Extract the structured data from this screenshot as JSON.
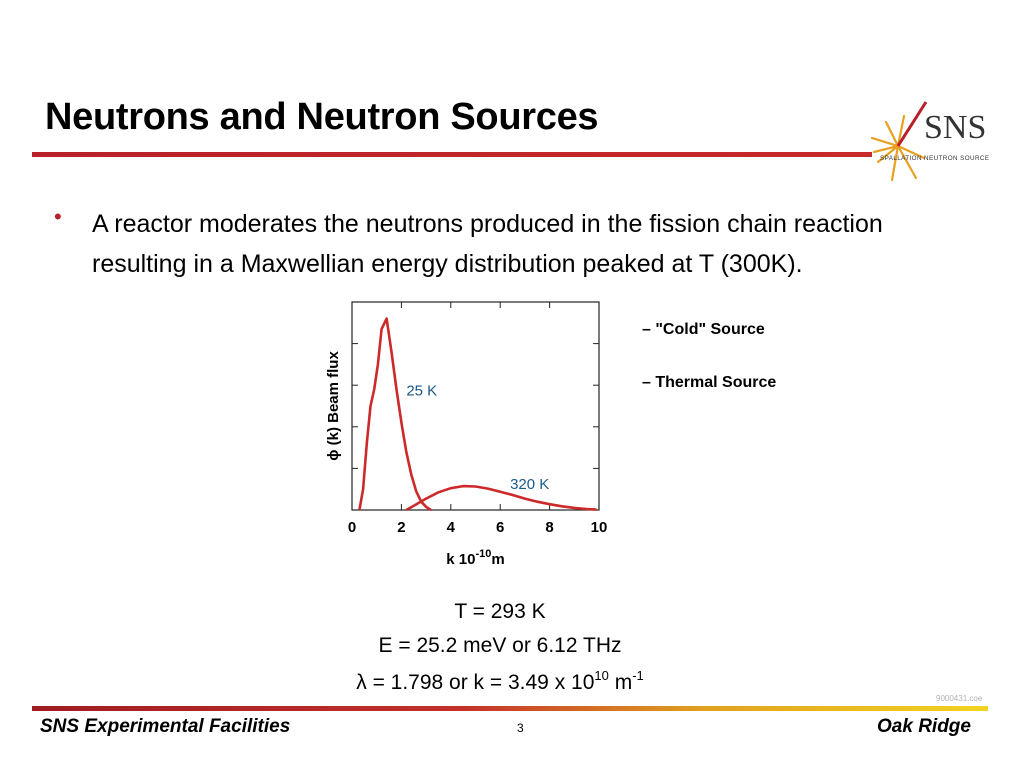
{
  "slide": {
    "title": "Neutrons and Neutron Sources",
    "logo": {
      "icon": "sns-starburst-logo",
      "text": "SNS",
      "subtitle": "SPALLATION NEUTRON SOURCE"
    },
    "bullet": "A reactor moderates the neutrons produced in the fission chain reaction resulting in a Maxwellian energy distribution peaked at T (300K).",
    "labels": {
      "cold": "– \"Cold\" Source",
      "thermal": "– Thermal Source"
    },
    "formula": {
      "line1": "T = 293 K",
      "line2": "E = 25.2 meV or 6.12 THz",
      "line3_a": "λ = 1.798  or k = 3.49 x 10",
      "line3_sup1": "10",
      "line3_b": " m",
      "line3_sup2": "-1"
    },
    "corner_code": "9000431.coe",
    "footer": {
      "left": "SNS Experimental Facilities",
      "page": "3",
      "right": "Oak Ridge"
    }
  },
  "colors": {
    "accent_red": "#b8202a",
    "curve_red": "#cc2a2a",
    "annotation_blue": "#1a5a8a",
    "footer_gold": "#f3d321"
  },
  "chart_data": {
    "type": "line",
    "xlabel": "k 10",
    "xlabel_sup": "-10",
    "xlabel_unit": "m",
    "ylabel": "ϕ (k) Beam flux",
    "xlim": [
      0,
      10
    ],
    "ylim": [
      0,
      1
    ],
    "x_ticks": [
      0,
      2,
      4,
      6,
      8,
      10
    ],
    "y_ticks": [
      0.2,
      0.4,
      0.6,
      0.8
    ],
    "series": [
      {
        "name": "25 K",
        "x": [
          0.3,
          0.45,
          0.6,
          0.75,
          0.9,
          1.05,
          1.2,
          1.4,
          1.6,
          1.8,
          2.0,
          2.2,
          2.4,
          2.6,
          2.8,
          3.0,
          3.2
        ],
        "values": [
          0.0,
          0.1,
          0.32,
          0.5,
          0.58,
          0.7,
          0.87,
          0.92,
          0.76,
          0.58,
          0.42,
          0.28,
          0.17,
          0.09,
          0.04,
          0.015,
          0.0
        ]
      },
      {
        "name": "320 K",
        "x": [
          2.2,
          2.5,
          3.0,
          3.5,
          4.0,
          4.5,
          5.0,
          5.5,
          6.0,
          6.5,
          7.0,
          7.5,
          8.0,
          8.5,
          9.0,
          9.5,
          9.9
        ],
        "values": [
          0.0,
          0.02,
          0.055,
          0.085,
          0.105,
          0.115,
          0.113,
          0.103,
          0.088,
          0.072,
          0.055,
          0.04,
          0.028,
          0.018,
          0.01,
          0.005,
          0.002
        ]
      }
    ],
    "grid": false
  }
}
